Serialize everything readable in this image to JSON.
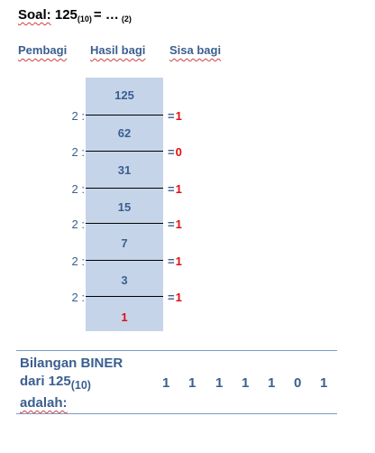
{
  "title": {
    "soal": "Soal:",
    "number": "125",
    "base": "(10)",
    "rest": "= …",
    "base_target": "(2)"
  },
  "headers": {
    "pembagi": "Pembagi",
    "hasil_bagi": "Hasil bagi",
    "sisa_bagi": "Sisa bagi"
  },
  "quotients": [
    "125",
    "62",
    "31",
    "15",
    "7",
    "3",
    "1"
  ],
  "steps": [
    {
      "divisor": "2 :",
      "eq": "=",
      "remainder": "1"
    },
    {
      "divisor": "2 :",
      "eq": "=",
      "remainder": "0"
    },
    {
      "divisor": "2 :",
      "eq": "=",
      "remainder": "1"
    },
    {
      "divisor": "2 :",
      "eq": "=",
      "remainder": "1"
    },
    {
      "divisor": "2 :",
      "eq": "=",
      "remainder": "1"
    },
    {
      "divisor": "2 :",
      "eq": "=",
      "remainder": "1"
    }
  ],
  "footer": {
    "line1": "Bilangan BINER",
    "line2": "dari 125",
    "base": "(10)",
    "line3": "adalah:",
    "bits": [
      "1",
      "1",
      "1",
      "1",
      "1",
      "0",
      "1"
    ]
  },
  "colors": {
    "text_blue": "#3a5f8f",
    "highlight_red": "#e01010",
    "column_fill": "#c6d4e9"
  }
}
